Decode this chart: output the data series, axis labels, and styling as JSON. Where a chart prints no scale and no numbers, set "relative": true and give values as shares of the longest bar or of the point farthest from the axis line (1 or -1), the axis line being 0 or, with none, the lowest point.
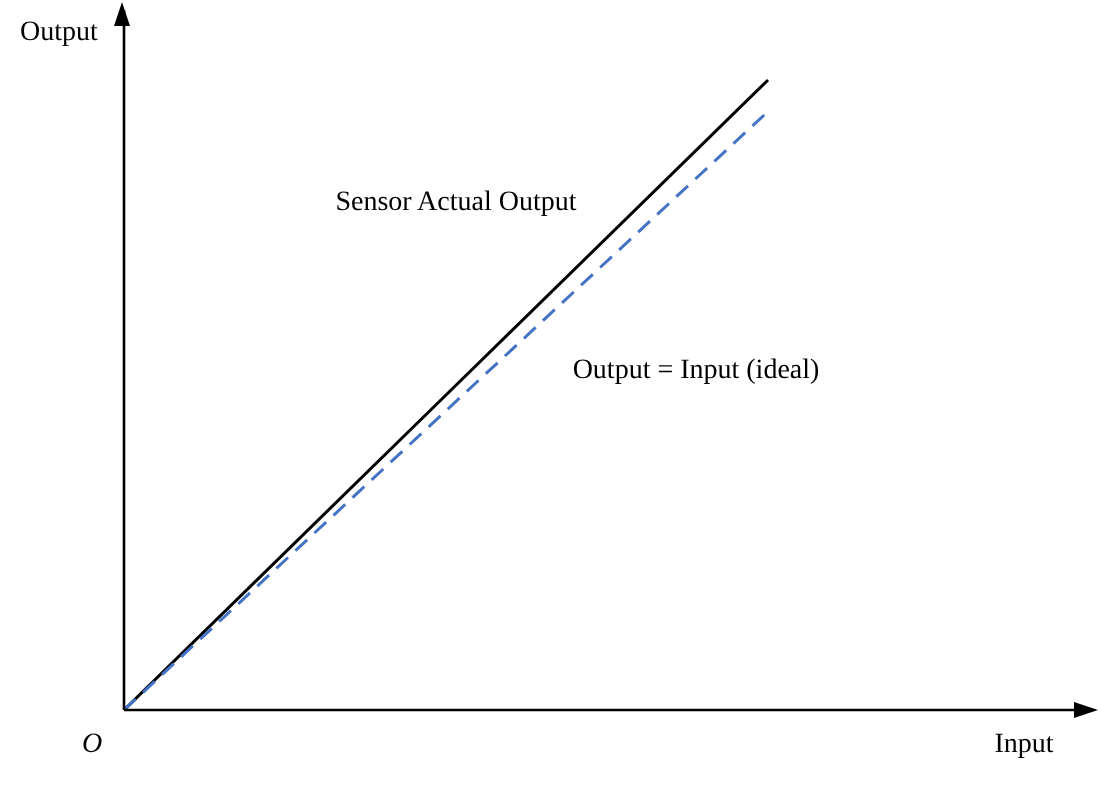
{
  "chart_data": {
    "type": "line",
    "xlabel": "Input",
    "ylabel": "Output",
    "annotations": [
      "O"
    ],
    "relative": true,
    "categories": [
      null,
      null,
      null,
      null
    ],
    "legend": false,
    "marker": "none",
    "grid": false,
    "series": [
      {
        "name": "Sensor Actual Output",
        "color": "#000000",
        "values": [
          0,
          0.5,
          1,
          null
        ],
        "line_style": "solid"
      },
      {
        "name": "Output = Input (ideal)",
        "color": "#4472c4",
        "values": [
          0,
          0.475,
          0.95,
          null
        ],
        "line_style": "dashed"
      }
    ]
  }
}
